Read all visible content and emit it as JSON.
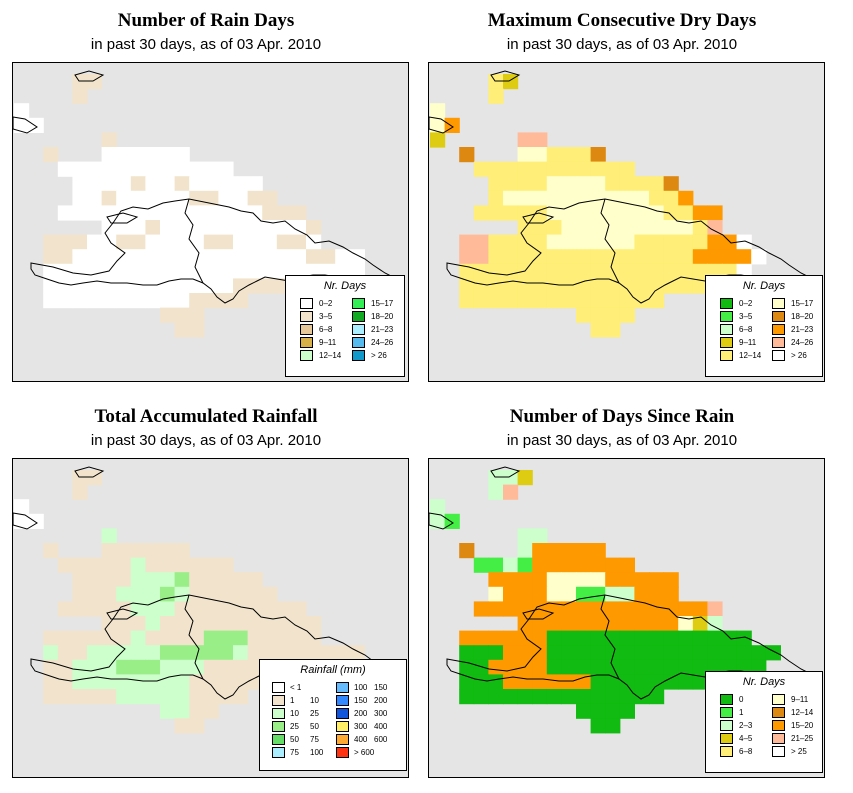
{
  "panels": [
    {
      "title": "Number of Rain Days",
      "subtitle": "in past 30 days, as of  03 Apr. 2010",
      "legend_title": "Nr. Days",
      "palette": {
        "a": "#ffffff",
        "b": "#f2e4cc",
        "c": "#e6c899",
        "d": "#d8b04a",
        "e": "#ccffcc",
        "f": "#33ee55",
        "g": "#11aa22",
        "h": "#aaeeff",
        "i": "#55bbee",
        "j": "#1199cc"
      },
      "legend": [
        {
          "label": "0–2",
          "color": "#ffffff"
        },
        {
          "label": "3–5",
          "color": "#f2e4cc"
        },
        {
          "label": "6–8",
          "color": "#e6c899"
        },
        {
          "label": "9–11",
          "color": "#d8b04a"
        },
        {
          "label": "12–14",
          "color": "#ccffcc"
        },
        {
          "label": "15–17",
          "color": "#33ee55"
        },
        {
          "label": "18–20",
          "color": "#11aa22"
        },
        {
          "label": "21–23",
          "color": "#aaeeff"
        },
        {
          "label": "24–26",
          "color": "#55bbee"
        },
        {
          "label": "> 26",
          "color": "#1199cc"
        }
      ],
      "grid": [
        "....bb...................",
        "....b....................",
        "a........................",
        "aa.......................",
        "......b..................",
        "..b...aaaaaa.............",
        "...aaaaaaaaaaaa..........",
        "....aaaabaabaaaaa........",
        "....aabaaaaabbaabb.......",
        "...aaaaaaaaaaaaaabbb.....",
        "......aaabaaaaaaaaaab....",
        "..bbbaabbaaaabbaaabba....",
        "..bbaaaaaaaaaaaaaaaabbaa.",
        "..aaaaaaaaaaaaaaaaaaaaaa.",
        "..aaaaaaaaaaaaabbbbaaa...",
        "..aaaaaaaaaabbbb.........",
        "..........bbb............",
        "...........bb............"
      ]
    },
    {
      "title": "Maximum Consecutive Dry Days",
      "subtitle": "in past 30 days, as of  03 Apr. 2010",
      "legend_title": "Nr. Days",
      "palette": {
        "a": "#11bb11",
        "b": "#44ee44",
        "c": "#ccffcc",
        "d": "#ddcc11",
        "e": "#ffee77",
        "f": "#ffffcc",
        "g": "#dd8811",
        "h": "#ff9900",
        "i": "#ffbb99",
        "j": "#ffffff"
      },
      "legend": [
        {
          "label": "0–2",
          "color": "#11bb11"
        },
        {
          "label": "3–5",
          "color": "#44ee44"
        },
        {
          "label": "6–8",
          "color": "#ccffcc"
        },
        {
          "label": "9–11",
          "color": "#ddcc11"
        },
        {
          "label": "12–14",
          "color": "#ffee77"
        },
        {
          "label": "15–17",
          "color": "#ffffcc"
        },
        {
          "label": "18–20",
          "color": "#dd8811"
        },
        {
          "label": "21–23",
          "color": "#ff9900"
        },
        {
          "label": "24–26",
          "color": "#ffbb99"
        },
        {
          "label": "> 26",
          "color": "#ffffff"
        }
      ],
      "grid": [
        "....ed...................",
        "....e....................",
        "f........................",
        "fh.......................",
        "d.....ii.................",
        "..g...ffeeeg.............",
        "...eeeeeeeeeee...........",
        "....eeeeffffeeeeg........",
        "....effffffffffeeh.......",
        "...eeeeeffffffffeehh.....",
        "......eeefffffffffei.....",
        "..iieeeeffffffeeeeehhj...",
        "..iieeeeeeeeeeeeeehhhhj..",
        "..eeeeeeeeeeeeeeeeeeej...",
        "..eeeeeeeeeeeeeeeeee.....",
        "..eeeeeeeeeeeeee.........",
        "..........eeee...........",
        "...........ee............"
      ]
    },
    {
      "title": "Total Accumulated Rainfall",
      "subtitle": "in past 30 days, as of  03 Apr. 2010",
      "legend_title": "Rainfall (mm)",
      "palette": {
        "a": "#ffffff",
        "b": "#f2e4cc",
        "c": "#ccffcc",
        "d": "#99ee88",
        "e": "#66dd66",
        "f": "#33bb33",
        "g": "#aaeeff"
      },
      "legend": [
        {
          "lo": "< 1",
          "hi": "",
          "color": "#ffffff"
        },
        {
          "lo": "1",
          "hi": "10",
          "color": "#f2e4cc"
        },
        {
          "lo": "10",
          "hi": "25",
          "color": "#ccffcc"
        },
        {
          "lo": "25",
          "hi": "50",
          "color": "#99ee88"
        },
        {
          "lo": "50",
          "hi": "75",
          "color": "#66dd66"
        },
        {
          "lo": "75",
          "hi": "100",
          "color": "#aaeeff"
        },
        {
          "lo": "100",
          "hi": "150",
          "color": "#66bbff"
        },
        {
          "lo": "150",
          "hi": "200",
          "color": "#3388ff"
        },
        {
          "lo": "200",
          "hi": "300",
          "color": "#1155dd"
        },
        {
          "lo": "300",
          "hi": "400",
          "color": "#ffee66"
        },
        {
          "lo": "400",
          "hi": "600",
          "color": "#ffaa33"
        },
        {
          "lo": "> 600",
          "hi": "",
          "color": "#ff3311"
        }
      ],
      "grid": [
        "....bb...................",
        "....b....................",
        "a........................",
        "aa.......................",
        "......c..................",
        "..b...bbbbbb.............",
        "...bbbbbcbbbbbb..........",
        "....bbbbcccdbbbbb........",
        "....bbbcccdcbbbbbb.......",
        "...bbbbbcccbbbbbbbbb.....",
        "......bbbcbbbbbbbbbbb....",
        "..bbbbbbcbbbbdddbbbbb....",
        "..cbbcccccdddddcbbbbbbbb.",
        "..bbcccdddcccbbbbbbbbbbb.",
        "..bbccccccccbbbbbbbbbb...",
        "..bbbbbcccccbbbb.........",
        "..........ccbb...........",
        "...........bb............"
      ]
    },
    {
      "title": "Number of Days Since Rain",
      "subtitle": "in past 30 days, as of  03 Apr. 2010",
      "legend_title": "Nr. Days",
      "palette": {
        "a": "#11bb11",
        "b": "#44ee44",
        "c": "#ccffcc",
        "d": "#ddcc11",
        "e": "#ffee77",
        "f": "#ffffcc",
        "g": "#dd8811",
        "h": "#ff9900",
        "i": "#ffbb99",
        "j": "#ffffff"
      },
      "legend": [
        {
          "label": "0",
          "color": "#11bb11"
        },
        {
          "label": "1",
          "color": "#44ee44"
        },
        {
          "label": "2–3",
          "color": "#ccffcc"
        },
        {
          "label": "4–5",
          "color": "#ddcc11"
        },
        {
          "label": "6–8",
          "color": "#ffee77"
        },
        {
          "label": "9–11",
          "color": "#ffffcc"
        },
        {
          "label": "12–14",
          "color": "#dd8811"
        },
        {
          "label": "15–20",
          "color": "#ff9900"
        },
        {
          "label": "21–25",
          "color": "#ffbb99"
        },
        {
          "label": "> 25",
          "color": "#ffffff"
        }
      ],
      "grid": [
        "....ccd..................",
        "....ci...................",
        "c........................",
        "cb.......................",
        "......cc.................",
        "..g...chhhhh.............",
        "...bbcbhhhhhhh...........",
        "....hhhhffffhhhhh........",
        "....fhhhffbbcchhh........",
        "...hhhhhhhhhhhhhhhhi.....",
        "......hhhhhhhhhhhfdc.....",
        "..hhhhhhaaaaaaaaaaaaaa...",
        "..aaahhhaaaaaaaaaaaaaaaa.",
        "..aahhhhaaaaaaaaaaaaaaa..",
        "..aaahhhhhhaaaaaaaaaaa...",
        "..aaaaaaaaaaaaaa.........",
        "..........aaaa...........",
        "...........aa............"
      ]
    }
  ]
}
